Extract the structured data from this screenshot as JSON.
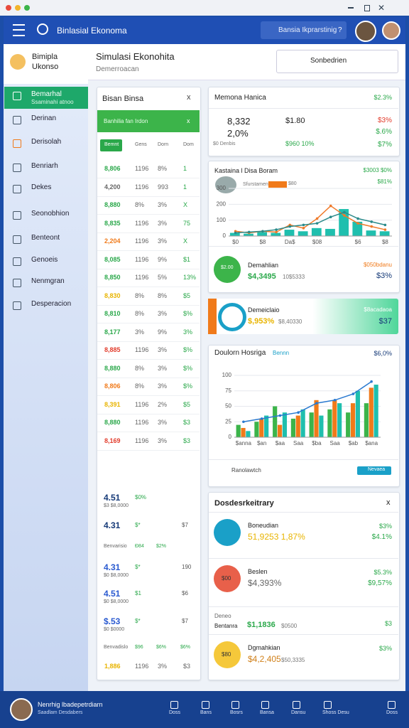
{
  "header": {
    "title": "Binlasial Ekonoma",
    "search": "Bansia Ikprarstinig",
    "search_badge": "?"
  },
  "sidebar": {
    "brand": "Bimipla",
    "brand_sub": "Ukonso",
    "active_sub": "Ssaminahi atnoo",
    "items": [
      "Bemarhal",
      "Derinan",
      "Derisolah",
      "Benriarh",
      "Dekes",
      "Seonobhion",
      "Benteont",
      "Genoeis",
      "Nenmgran",
      "Desperacion"
    ]
  },
  "topbar": {
    "title": "Simulasi Ekonohita",
    "subtitle": "Demerroacan",
    "button": "Sonbedrien"
  },
  "table": {
    "title": "Bisan Binsa",
    "filter": "Banhilia fan Irdon",
    "filter_badge": "x",
    "columns": [
      "Bemnt",
      "Gens",
      "Dorn",
      "Dom"
    ],
    "rows": [
      [
        "8,806",
        "1196",
        "8%",
        "1"
      ],
      [
        "4,200",
        "1196",
        "993",
        "1"
      ],
      [
        "8,880",
        "8%",
        "3%",
        "X"
      ],
      [
        "8,835",
        "1196",
        "3%",
        "75"
      ],
      [
        "2,204",
        "1196",
        "3%",
        "X"
      ],
      [
        "8,085",
        "1196",
        "9%",
        "$1"
      ],
      [
        "8,850",
        "1196",
        "5%",
        "13%"
      ],
      [
        "8,830",
        "8%",
        "8%",
        "$5"
      ],
      [
        "8,810",
        "8%",
        "3%",
        "$%"
      ],
      [
        "8,177",
        "3%",
        "9%",
        "3%"
      ],
      [
        "8,885",
        "1196",
        "3%",
        "$%"
      ],
      [
        "8,880",
        "8%",
        "3%",
        "$%"
      ],
      [
        "8,806",
        "8%",
        "3%",
        "$%"
      ],
      [
        "8,391",
        "1196",
        "2%",
        "$5"
      ],
      [
        "8,880",
        "1196",
        "3%",
        "$3"
      ],
      [
        "8,169",
        "1196",
        "3%",
        "$3"
      ]
    ],
    "row_colors": [
      "#2aa84a",
      "#666",
      "#2aa84a",
      "#2aa84a",
      "#f07a1a",
      "#2aa84a",
      "#2aa84a",
      "#e8b400",
      "#2aa84a",
      "#2aa84a",
      "#e23c2c",
      "#2aa84a",
      "#f07a1a",
      "#e8b400",
      "#2aa84a",
      "#e23c2c"
    ],
    "entries": [
      {
        "value": "4.51",
        "mid": "$0%",
        "sub": "$3 $8,0000"
      },
      {
        "value": "4.31",
        "mid": "$*",
        "end": "$7"
      },
      {
        "value": "4.31",
        "mid": "$*",
        "end": "190",
        "sub": "$0 $8,0000"
      },
      {
        "value": "4.51",
        "mid": "$1",
        "end": "$6",
        "sub": "$0 $8,0000"
      },
      {
        "value": "$.53",
        "mid": "$*",
        "end": "$7",
        "sub": "$0 $0000"
      }
    ],
    "groups": [
      [
        "Benvarisio",
        "Ð84",
        "$2%"
      ],
      [
        "Benvadislo",
        "$96",
        "$6%",
        "$6%"
      ]
    ],
    "last_row": [
      "1,886",
      "1196",
      "3%",
      "$3"
    ]
  },
  "summary": {
    "title": "Memona Hanica",
    "badge": "$2.3%",
    "big": "8,332",
    "pct": "2,0%",
    "foot": "$0 Denbis",
    "val": "$1.80",
    "val_sub": "$960 10%",
    "r1": "$3%",
    "r2": "$.6%",
    "r3": "$7%"
  },
  "chart_card": {
    "right": "$3003 $0%",
    "right2": "$81%",
    "legend": "Sfurstamentan",
    "legend_badge": "$80",
    "circle": "$2.00",
    "label": "Demahlian",
    "value": "$4,3495",
    "value_sub": "10$5333",
    "side": "$050bdanu",
    "side_pct": "$3%"
  },
  "banner": {
    "label": "Demeiclaio",
    "value": "$,953%",
    "value_sub": "$8,40330",
    "side": "$8acadaoa",
    "side_value": "$37"
  },
  "chart_card2": {
    "badge": "Bennn",
    "right": "$6,0%",
    "footer": "Ranolawtch",
    "button": "Nevaea"
  },
  "list": {
    "title": "Dosdesrkeitrary",
    "items": [
      {
        "badge": "",
        "name": "Boneudian",
        "value": "51,9253 1,87%",
        "r1": "$3%",
        "r2": "$4.1%"
      },
      {
        "badge": "$00",
        "name": "Beslen",
        "value": "$4,393%",
        "r1": "$5.3%",
        "r2": "$9,57%"
      },
      {
        "badge": "$80",
        "name": "Dgmahkian",
        "value": "$4,2,405",
        "sub": "$50,3335",
        "r1": "$3%"
      }
    ],
    "row": {
      "name": "Deneo",
      "name2": "Bentanra",
      "value": "$1,1836",
      "sub": "$0500",
      "r1": "$3"
    },
    "badge_colors": [
      "#1aa0c8",
      "#e8604a",
      "#f5c83a"
    ]
  },
  "footer": {
    "user": "Nenrhig lbadepetrdiarn",
    "user_sub": "Saadlam Desdabers",
    "nav": [
      "Doss",
      "Bans",
      "Bosrs",
      "Bansa",
      "Dansu",
      "Shoss Desu",
      "Doss"
    ]
  },
  "chart_data": [
    {
      "type": "bar",
      "title": "Kastaina l Disa Boram",
      "categories": [
        "$0",
        null,
        "$8",
        null,
        "Da$",
        null,
        "$08",
        null,
        null,
        "$6",
        null,
        "$8"
      ],
      "ylim": [
        0,
        300
      ],
      "yticks": [
        0,
        100,
        200,
        300
      ],
      "series": [
        {
          "type": "bar",
          "color": "#1fbfae",
          "values": [
            20,
            15,
            25,
            20,
            40,
            30,
            50,
            45,
            170,
            90,
            35,
            30
          ]
        },
        {
          "type": "line",
          "color": "#f07a2a",
          "values": [
            30,
            20,
            30,
            25,
            70,
            50,
            110,
            190,
            130,
            80,
            60,
            40
          ]
        },
        {
          "type": "line",
          "color": "#2a8a8a",
          "values": [
            20,
            25,
            30,
            40,
            60,
            70,
            80,
            120,
            150,
            110,
            90,
            70
          ]
        }
      ]
    },
    {
      "type": "bar",
      "title": "Doulorn Hosriga",
      "categories": [
        "$anna",
        "$an",
        "$aa",
        "Saa",
        "$ba",
        "Saa",
        "$ab",
        "$ana"
      ],
      "ylim": [
        0,
        100
      ],
      "yticks": [
        0,
        25,
        50,
        75,
        100
      ],
      "series": [
        {
          "type": "bar",
          "color": "#3cb44a",
          "values": [
            20,
            25,
            50,
            30,
            40,
            45,
            40,
            55
          ]
        },
        {
          "type": "bar",
          "color": "#f07a1a",
          "values": [
            15,
            30,
            20,
            35,
            60,
            60,
            55,
            80
          ]
        },
        {
          "type": "bar",
          "color": "#1fbfae",
          "values": [
            10,
            35,
            40,
            45,
            35,
            55,
            75,
            85
          ]
        },
        {
          "type": "line",
          "color": "#2a7ad0",
          "values": [
            25,
            30,
            35,
            40,
            55,
            60,
            70,
            90
          ]
        }
      ]
    }
  ]
}
